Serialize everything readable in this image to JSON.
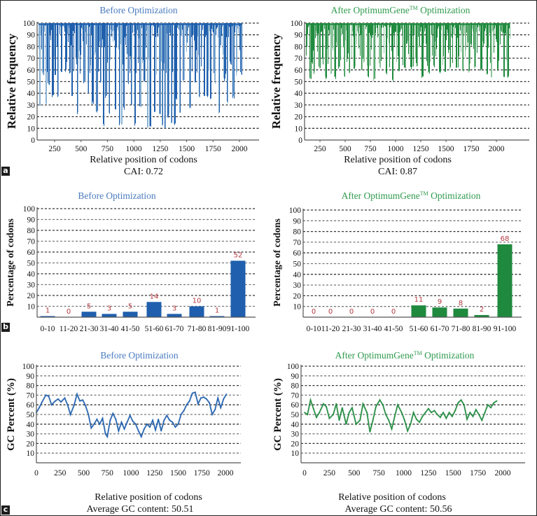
{
  "panels": {
    "a": "a",
    "b": "b",
    "c": "c"
  },
  "colors": {
    "before": "#1f5fad",
    "before_light": "#8ab3d6",
    "before_title": "#4a7bbf",
    "after": "#1f8a3e",
    "after_light": "#8cc49a",
    "after_title": "#2e9a4d",
    "value_label": "#b5393f"
  },
  "chart_data": [
    {
      "id": "a-before",
      "type": "bar",
      "title": "Before Optimization",
      "xlabel": "Relative position of codons",
      "ylabel": "Relative frequency",
      "caption": "CAI: 0.72",
      "yticks": [
        "0",
        "10",
        "20",
        "30",
        "40",
        "50",
        "60",
        "70",
        "80",
        "90",
        "100"
      ],
      "xticks": [
        "250",
        "500",
        "750",
        "1000",
        "1250",
        "1500",
        "1750",
        "2000"
      ],
      "ylim": [
        0,
        100
      ],
      "xlim": [
        80,
        2300
      ],
      "x_extent": [
        80,
        2040
      ],
      "grid": true,
      "note": "Dense per-codon relative frequency profile; minima reach ~10 with many dips between 20 and 60",
      "dips": [
        [
          90,
          28
        ],
        [
          120,
          55
        ],
        [
          150,
          30
        ],
        [
          175,
          47
        ],
        [
          215,
          36
        ],
        [
          240,
          55
        ],
        [
          265,
          35
        ],
        [
          300,
          58
        ],
        [
          340,
          58
        ],
        [
          380,
          55
        ],
        [
          400,
          35
        ],
        [
          455,
          22
        ],
        [
          480,
          72
        ],
        [
          520,
          48
        ],
        [
          555,
          38
        ],
        [
          600,
          30
        ],
        [
          640,
          22
        ],
        [
          680,
          48
        ],
        [
          705,
          12
        ],
        [
          730,
          35
        ],
        [
          760,
          22
        ],
        [
          820,
          25
        ],
        [
          860,
          12
        ],
        [
          880,
          12
        ],
        [
          900,
          25
        ],
        [
          940,
          48
        ],
        [
          975,
          30
        ],
        [
          1010,
          12
        ],
        [
          1060,
          28
        ],
        [
          1100,
          48
        ],
        [
          1130,
          10
        ],
        [
          1155,
          10
        ],
        [
          1200,
          22
        ],
        [
          1250,
          20
        ],
        [
          1275,
          12
        ],
        [
          1300,
          10
        ],
        [
          1330,
          19
        ],
        [
          1360,
          12
        ],
        [
          1390,
          12
        ],
        [
          1410,
          34
        ],
        [
          1440,
          22
        ],
        [
          1480,
          50
        ],
        [
          1540,
          25
        ],
        [
          1590,
          48
        ],
        [
          1630,
          35
        ],
        [
          1680,
          35
        ],
        [
          1710,
          35
        ],
        [
          1740,
          35
        ],
        [
          1780,
          48
        ],
        [
          1820,
          22
        ],
        [
          1870,
          50
        ],
        [
          1900,
          30
        ],
        [
          1960,
          35
        ],
        [
          1990,
          55
        ],
        [
          2030,
          56
        ]
      ]
    },
    {
      "id": "a-after",
      "type": "bar",
      "title": "After OptimumGene",
      "title_sup": "TM",
      "title_end": " Optimization",
      "xlabel": "Relative position of codons",
      "ylabel": "Relative frequency",
      "caption": "CAI: 0.87",
      "yticks": [
        "0",
        "10",
        "20",
        "30",
        "40",
        "50",
        "60",
        "70",
        "80",
        "90",
        "100"
      ],
      "xticks": [
        "250",
        "500",
        "750",
        "1000",
        "1250",
        "1500",
        "1750",
        "2000"
      ],
      "ylim": [
        0,
        100
      ],
      "xlim": [
        100,
        2300
      ],
      "x_extent": [
        100,
        2080
      ],
      "grid": true,
      "note": "Dense per-codon relative frequency profile; all values lie between ~50 and 100",
      "dips": [
        [
          140,
          52
        ],
        [
          180,
          56
        ],
        [
          230,
          60
        ],
        [
          290,
          52
        ],
        [
          340,
          56
        ],
        [
          380,
          52
        ],
        [
          420,
          60
        ],
        [
          470,
          52
        ],
        [
          520,
          56
        ],
        [
          570,
          60
        ],
        [
          640,
          58
        ],
        [
          700,
          52
        ],
        [
          760,
          50
        ],
        [
          820,
          60
        ],
        [
          880,
          56
        ],
        [
          940,
          49
        ],
        [
          1000,
          58
        ],
        [
          1060,
          60
        ],
        [
          1120,
          60
        ],
        [
          1180,
          62
        ],
        [
          1230,
          52
        ],
        [
          1290,
          56
        ],
        [
          1340,
          62
        ],
        [
          1400,
          56
        ],
        [
          1450,
          58
        ],
        [
          1500,
          60
        ],
        [
          1560,
          60
        ],
        [
          1620,
          58
        ],
        [
          1680,
          56
        ],
        [
          1740,
          60
        ],
        [
          1800,
          58
        ],
        [
          1860,
          56
        ],
        [
          1900,
          52
        ],
        [
          1960,
          58
        ],
        [
          2020,
          52
        ],
        [
          2060,
          52
        ]
      ]
    },
    {
      "id": "b-before",
      "type": "bar",
      "title": "Before Optimization",
      "ylabel": "Percentage of codons",
      "categories": [
        "0-10",
        "11-20",
        "21-30",
        "31-40",
        "41-50",
        "51-60",
        "61-70",
        "71-80",
        "81-90",
        "91-100"
      ],
      "values": [
        1,
        0,
        5,
        3,
        5,
        14,
        3,
        10,
        1,
        52
      ],
      "labels": [
        "1",
        "0",
        "5",
        "3",
        "5",
        "14",
        "3",
        "10",
        "1",
        "52"
      ],
      "yticks": [
        "10",
        "20",
        "30",
        "40",
        "50",
        "60",
        "70",
        "80",
        "90",
        "100"
      ],
      "ylim": [
        0,
        100
      ],
      "grid": true
    },
    {
      "id": "b-after",
      "type": "bar",
      "title": "After OptimumGene",
      "title_sup": "TM",
      "title_end": " Optimization",
      "ylabel": "Percentage of codons",
      "categories": [
        "0-10",
        "11-20",
        "21-30",
        "31-40",
        "41-50",
        "51-60",
        "61-70",
        "71-80",
        "81-90",
        "91-100"
      ],
      "values": [
        0,
        0,
        0,
        0,
        0,
        11,
        9,
        8,
        2,
        68
      ],
      "labels": [
        "0",
        "0",
        "0",
        "0",
        "0",
        "11",
        "9",
        "8",
        "2",
        "68"
      ],
      "yticks": [
        "10",
        "20",
        "30",
        "40",
        "50",
        "60",
        "70",
        "80",
        "90",
        "100"
      ],
      "ylim": [
        0,
        100
      ],
      "grid": true
    },
    {
      "id": "c-before",
      "type": "line",
      "title": "Before Optimization",
      "xlabel": "Relative position of codons",
      "ylabel": "GC Percent (%)",
      "caption": "Average GC content: 50.51",
      "xticks": [
        "0",
        "250",
        "500",
        "750",
        "1000",
        "1250",
        "1500",
        "1750",
        "2000"
      ],
      "yticks": [
        "10",
        "20",
        "30",
        "40",
        "50",
        "60",
        "70",
        "80",
        "90",
        "100"
      ],
      "ylim": [
        0,
        100
      ],
      "xlim": [
        0,
        2300
      ],
      "grid": true,
      "x": [
        0,
        30,
        60,
        100,
        130,
        160,
        200,
        230,
        260,
        300,
        330,
        360,
        400,
        430,
        460,
        490,
        520,
        550,
        580,
        610,
        640,
        670,
        700,
        730,
        750,
        780,
        810,
        840,
        870,
        900,
        930,
        960,
        990,
        1020,
        1050,
        1080,
        1110,
        1140,
        1170,
        1200,
        1230,
        1260,
        1290,
        1320,
        1350,
        1380,
        1410,
        1440,
        1470,
        1500,
        1530,
        1560,
        1590,
        1620,
        1650,
        1680,
        1710,
        1740,
        1770,
        1800,
        1830,
        1860,
        1890,
        1920,
        1950,
        1980,
        2010
      ],
      "y": [
        52,
        57,
        63,
        70,
        69,
        60,
        64,
        66,
        63,
        67,
        60,
        50,
        60,
        71,
        64,
        65,
        59,
        50,
        36,
        40,
        45,
        40,
        46,
        30,
        27,
        44,
        51,
        45,
        33,
        42,
        35,
        42,
        49,
        43,
        40,
        33,
        27,
        35,
        40,
        37,
        44,
        34,
        45,
        33,
        44,
        49,
        44,
        42,
        37,
        40,
        50,
        54,
        60,
        64,
        72,
        73,
        61,
        67,
        68,
        66,
        62,
        50,
        55,
        67,
        57,
        66,
        71
      ]
    },
    {
      "id": "c-after",
      "type": "line",
      "title": "After OptimumGene",
      "title_sup": "TM",
      "title_end": " Optimization",
      "xlabel": "Relative position of codons",
      "ylabel": "GC Percent (%)",
      "caption": "Average GC content: 50.56",
      "xticks": [
        "0",
        "250",
        "500",
        "750",
        "1000",
        "1250",
        "1500",
        "1750",
        "2000"
      ],
      "yticks": [
        "10",
        "20",
        "30",
        "40",
        "50",
        "60",
        "70",
        "80",
        "90",
        "100"
      ],
      "ylim": [
        0,
        100
      ],
      "xlim": [
        0,
        2200
      ],
      "grid": true,
      "x": [
        0,
        30,
        60,
        90,
        120,
        150,
        190,
        220,
        250,
        290,
        320,
        350,
        380,
        420,
        450,
        480,
        520,
        560,
        590,
        630,
        660,
        690,
        720,
        760,
        790,
        820,
        850,
        880,
        910,
        940,
        980,
        1010,
        1040,
        1070,
        1100,
        1130,
        1160,
        1190,
        1220,
        1250,
        1280,
        1310,
        1340,
        1370,
        1400,
        1430,
        1460,
        1490,
        1520,
        1550,
        1580,
        1610,
        1640,
        1670,
        1700,
        1730,
        1760,
        1790,
        1820,
        1850,
        1880,
        1910,
        1940
      ],
      "y": [
        52,
        50,
        65,
        56,
        47,
        52,
        61,
        58,
        46,
        50,
        61,
        44,
        57,
        40,
        52,
        57,
        40,
        44,
        61,
        52,
        32,
        44,
        58,
        65,
        60,
        50,
        44,
        35,
        48,
        60,
        52,
        44,
        33,
        40,
        52,
        45,
        42,
        48,
        52,
        56,
        52,
        54,
        50,
        47,
        52,
        46,
        52,
        48,
        54,
        62,
        65,
        60,
        45,
        52,
        48,
        55,
        50,
        44,
        52,
        60,
        57,
        62,
        64
      ]
    }
  ]
}
